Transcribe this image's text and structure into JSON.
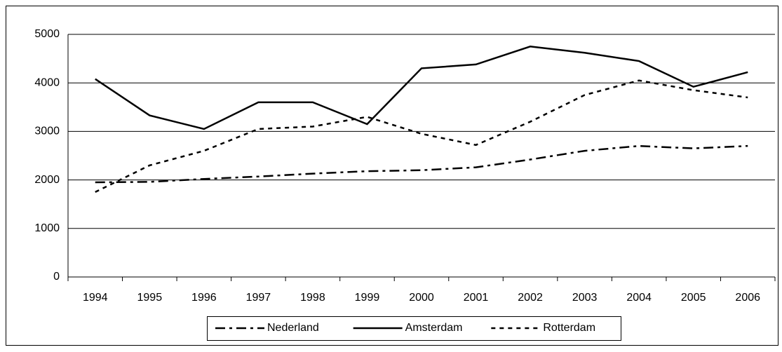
{
  "chart_data": {
    "type": "line",
    "categories": [
      "1994",
      "1995",
      "1996",
      "1997",
      "1998",
      "1999",
      "2000",
      "2001",
      "2002",
      "2003",
      "2004",
      "2005",
      "2006"
    ],
    "series": [
      {
        "name": "Nederland",
        "color": "#000000",
        "dash": "14 6 4 6",
        "values": [
          1950,
          1960,
          2020,
          2070,
          2130,
          2180,
          2200,
          2260,
          2420,
          2600,
          2700,
          2650,
          2700
        ]
      },
      {
        "name": "Amsterdam",
        "color": "#000000",
        "dash": "none",
        "values": [
          4080,
          3330,
          3050,
          3600,
          3600,
          3150,
          4300,
          4380,
          4750,
          4620,
          4450,
          3920,
          4220
        ]
      },
      {
        "name": "Rotterdam",
        "color": "#000000",
        "dash": "6 6",
        "values": [
          1750,
          2300,
          2600,
          3050,
          3100,
          3300,
          2950,
          2720,
          3200,
          3750,
          4050,
          3850,
          3700
        ]
      }
    ],
    "ylim": [
      0,
      5000
    ],
    "yticks": [
      0,
      1000,
      2000,
      3000,
      4000,
      5000
    ],
    "grid": true,
    "legend": "bottom"
  }
}
